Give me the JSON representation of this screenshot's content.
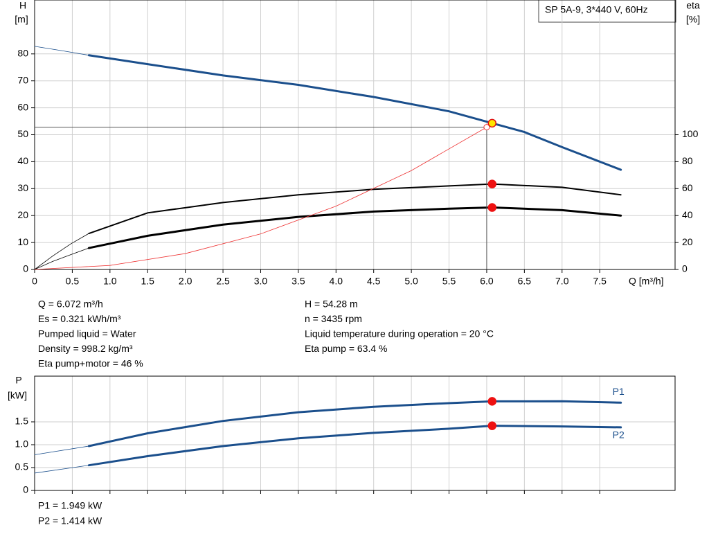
{
  "chart_data": [
    {
      "type": "line",
      "title": "SP 5A-9, 3*440 V, 60Hz",
      "x_label": "Q [m³/h]",
      "y_label": [
        "H",
        "[m]"
      ],
      "y2_label": [
        "eta",
        "[%]"
      ],
      "xlim": [
        0,
        8.5
      ],
      "ylim": [
        0,
        100
      ],
      "y2lim": [
        0,
        200
      ],
      "grid": true,
      "show_xtick_labels": true,
      "xticks": [
        0,
        0.5,
        {
          "value": 1,
          "label": "1.0"
        },
        1.5,
        {
          "value": 2,
          "label": "2.0"
        },
        2.5,
        {
          "value": 3,
          "label": "3.0"
        },
        3.5,
        {
          "value": 4,
          "label": "4.0"
        },
        4.5,
        {
          "value": 5,
          "label": "5.0"
        },
        5.5,
        {
          "value": 6,
          "label": "6.0"
        },
        6.5,
        {
          "value": 7,
          "label": "7.0"
        },
        7.5
      ],
      "yticks": [
        0,
        10,
        20,
        30,
        40,
        50,
        60,
        70,
        80
      ],
      "y2ticks": [
        0,
        20,
        40,
        60,
        80,
        100
      ],
      "series": [
        {
          "color": "#1b4f8c",
          "extrapolated": true,
          "x": [
            0,
            0.36,
            0.72
          ],
          "values": [
            82.8,
            81.2,
            79.5
          ]
        },
        {
          "color": "#1b4f8c",
          "x": [
            0.72,
            1.5,
            2.5,
            3.5,
            4.5,
            5.5,
            6.072,
            6.5,
            7.0,
            7.78
          ],
          "values": [
            79.5,
            76.2,
            72,
            68.5,
            64,
            58.7,
            54.28,
            51,
            45.4,
            37
          ]
        },
        {
          "color": "#000000",
          "extrapolated": true,
          "axis": "y2",
          "x": [
            0,
            0.24,
            0.48,
            0.72
          ],
          "values": [
            0,
            10,
            19,
            26.7
          ]
        },
        {
          "color": "#000000",
          "axis": "y2",
          "x": [
            0.72,
            1.5,
            2.5,
            3.5,
            4.5,
            5.5,
            6.072,
            7.0,
            7.78
          ],
          "values": [
            26.7,
            42,
            49.7,
            55.4,
            59.5,
            62,
            63.4,
            61,
            55.4
          ]
        },
        {
          "color": "#000000",
          "extrapolated": true,
          "axis": "y2",
          "x": [
            0,
            0.24,
            0.48,
            0.72
          ],
          "values": [
            0,
            6,
            11,
            15.9
          ]
        },
        {
          "color": "#000000",
          "axis": "y2",
          "x": [
            0.72,
            1.5,
            2.5,
            3.5,
            4.5,
            5.5,
            6.072,
            7.0,
            7.78
          ],
          "values": [
            15.9,
            25,
            33.3,
            39,
            43,
            45.1,
            46,
            44,
            40
          ]
        },
        {
          "color": "#ee3333",
          "extrapolated": true,
          "crosshair": true,
          "x": [
            0,
            1,
            2,
            3,
            4,
            5,
            6
          ],
          "values": [
            0,
            1.5,
            5.9,
            13.2,
            23.5,
            36.7,
            52.8
          ]
        }
      ],
      "operating_points": [
        {
          "x": 6.072,
          "value": 54.28,
          "color": "#ffe600"
        },
        {
          "x": 6.072,
          "value": 63.4,
          "axis": "y2",
          "color": "#ee1111"
        },
        {
          "x": 6.072,
          "value": 46,
          "axis": "y2",
          "color": "#ee1111"
        }
      ]
    },
    {
      "type": "line",
      "y_label": [
        "P",
        "[kW]"
      ],
      "xlim": [
        0,
        8.5
      ],
      "ylim": [
        0,
        2.5
      ],
      "grid": true,
      "show_xtick_labels": false,
      "xticks": [
        0,
        0.5,
        1,
        1.5,
        2,
        2.5,
        3,
        3.5,
        4,
        4.5,
        5,
        5.5,
        6,
        6.5,
        7,
        7.5
      ],
      "yticks": [
        0,
        0.5,
        {
          "value": 1,
          "label": "1.0"
        },
        1.5
      ],
      "series": [
        {
          "color": "#1b4f8c",
          "extrapolated": true,
          "x": [
            0,
            0.72
          ],
          "values": [
            0.78,
            0.97
          ]
        },
        {
          "name": "P1",
          "color": "#1b4f8c",
          "x": [
            0.72,
            1.5,
            2.5,
            3.5,
            4.5,
            5.5,
            6.072,
            7.0,
            7.78
          ],
          "values": [
            0.97,
            1.25,
            1.52,
            1.71,
            1.83,
            1.91,
            1.949,
            1.95,
            1.92
          ]
        },
        {
          "color": "#1b4f8c",
          "extrapolated": true,
          "x": [
            0,
            0.72
          ],
          "values": [
            0.38,
            0.55
          ]
        },
        {
          "name": "P2",
          "color": "#1b4f8c",
          "x": [
            0.72,
            1.5,
            2.5,
            3.5,
            4.5,
            5.5,
            6.072,
            7.0,
            7.78
          ],
          "values": [
            0.55,
            0.75,
            0.97,
            1.14,
            1.26,
            1.35,
            1.414,
            1.4,
            1.38
          ]
        }
      ],
      "operating_points": [
        {
          "x": 6.072,
          "value": 1.949,
          "color": "#ee1111"
        },
        {
          "x": 6.072,
          "value": 1.414,
          "color": "#ee1111"
        }
      ]
    }
  ],
  "info": {
    "left": [
      "Q = 6.072 m³/h",
      "Es = 0.321 kWh/m³",
      "Pumped liquid = Water",
      "Density = 998.2 kg/m³",
      "Eta pump+motor = 46 %"
    ],
    "right": [
      "H = 54.28 m",
      "n = 3435 rpm",
      "Liquid temperature during operation = 20 °C",
      "Eta pump = 63.4 %"
    ]
  },
  "power_info": [
    "P1 = 1.949 kW",
    "P2 = 1.414 kW"
  ]
}
